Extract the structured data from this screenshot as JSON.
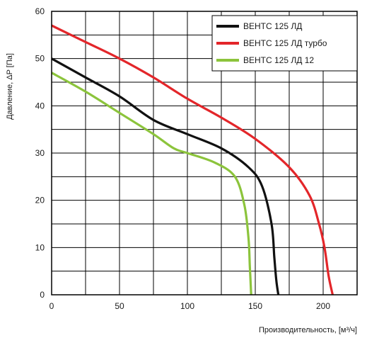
{
  "chart_data": {
    "type": "line",
    "xlabel": "Производительность, [м³/ч]",
    "ylabel": "Давление, ΔP [Па]",
    "xlim": [
      0,
      225
    ],
    "ylim": [
      0,
      60
    ],
    "x_ticks": [
      0,
      50,
      100,
      150,
      200
    ],
    "y_ticks": [
      0,
      10,
      20,
      30,
      40,
      50,
      60
    ],
    "grid": true,
    "grid_x_step": 25,
    "grid_y_step": 5,
    "legend_position": "top-right",
    "series": [
      {
        "name": "ВЕНТС 125 ЛД",
        "color": "#111111",
        "points": [
          [
            0,
            50
          ],
          [
            25,
            46
          ],
          [
            50,
            42
          ],
          [
            75,
            37
          ],
          [
            100,
            34
          ],
          [
            125,
            31
          ],
          [
            145,
            27
          ],
          [
            155,
            23
          ],
          [
            162,
            15
          ],
          [
            164,
            8
          ],
          [
            165.5,
            3
          ],
          [
            167,
            0
          ]
        ]
      },
      {
        "name": "ВЕНТС 125 ЛД турбо",
        "color": "#e3262a",
        "points": [
          [
            0,
            57
          ],
          [
            25,
            53.5
          ],
          [
            50,
            50
          ],
          [
            75,
            46
          ],
          [
            100,
            41.5
          ],
          [
            125,
            37.5
          ],
          [
            150,
            33
          ],
          [
            175,
            27
          ],
          [
            190,
            21
          ],
          [
            197,
            15
          ],
          [
            201,
            10
          ],
          [
            204,
            4
          ],
          [
            207,
            0
          ]
        ]
      },
      {
        "name": "ВЕНТС 125 ЛД  12",
        "color": "#8cc43c",
        "points": [
          [
            0,
            47
          ],
          [
            25,
            43
          ],
          [
            50,
            38.5
          ],
          [
            75,
            34
          ],
          [
            90,
            31
          ],
          [
            100,
            30
          ],
          [
            120,
            28
          ],
          [
            135,
            25
          ],
          [
            142,
            19
          ],
          [
            145,
            12
          ],
          [
            146,
            6
          ],
          [
            147,
            0
          ]
        ]
      }
    ]
  }
}
